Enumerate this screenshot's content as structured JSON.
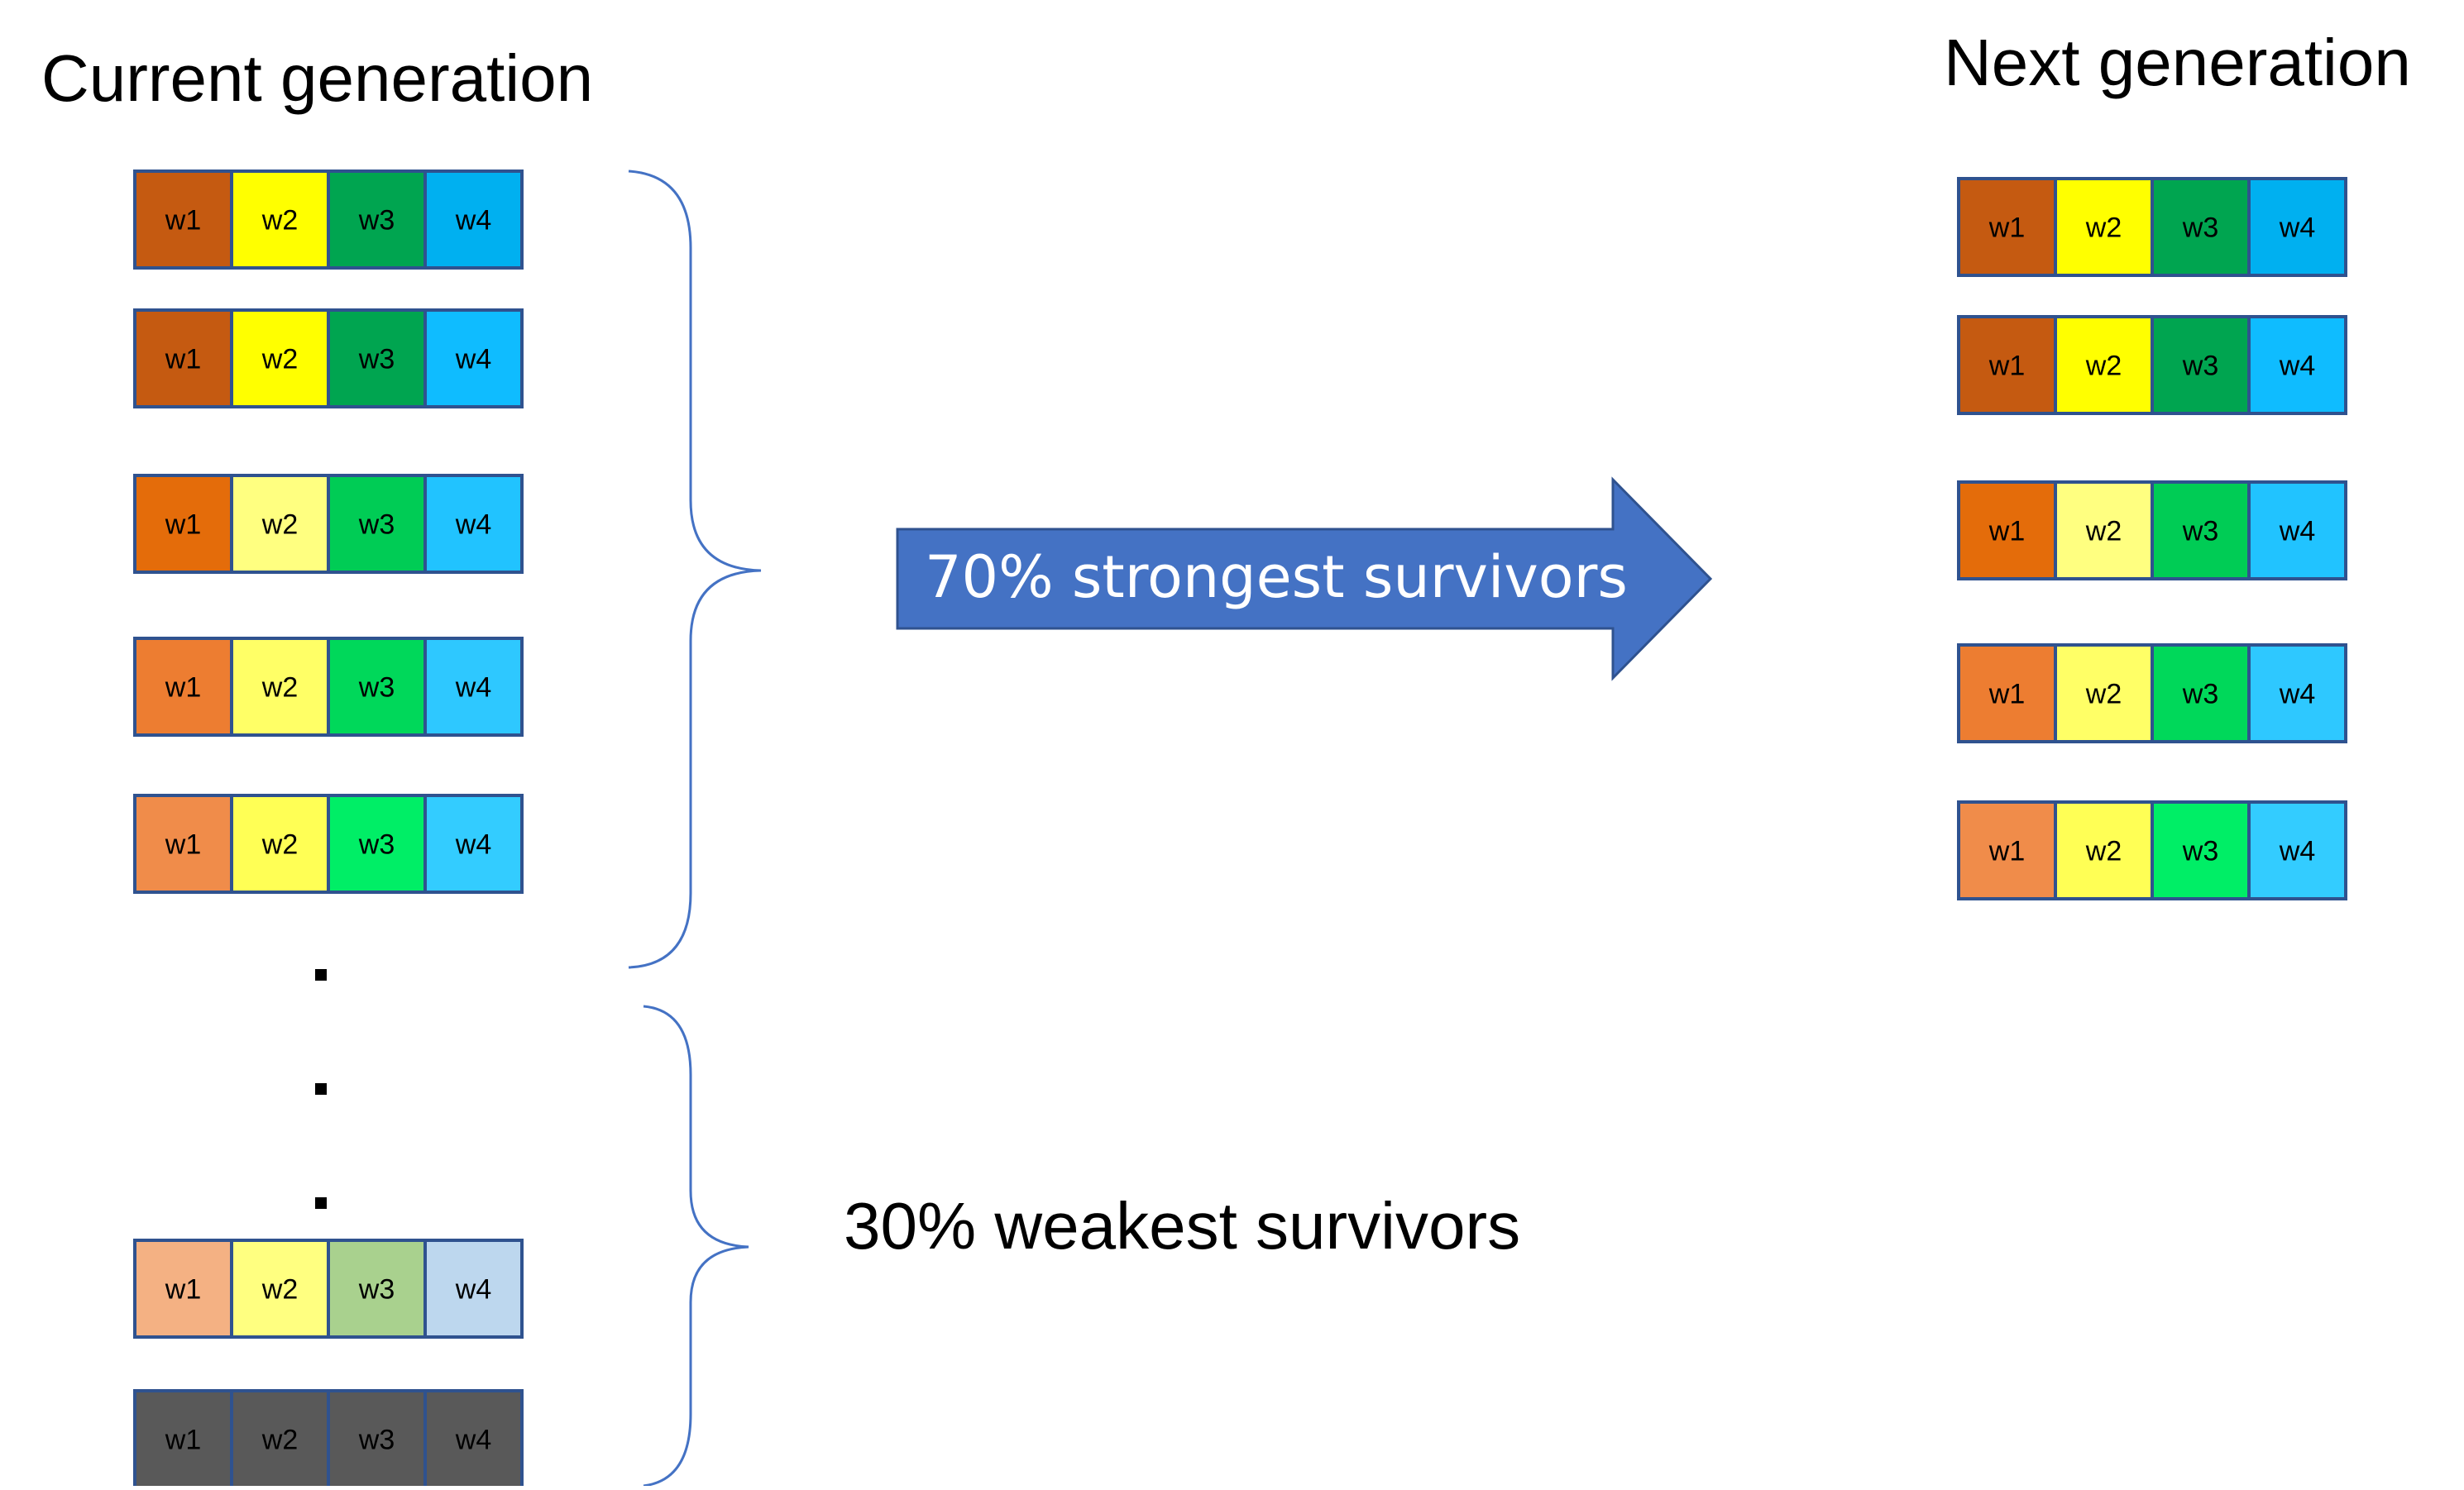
{
  "current_generation": {
    "title": "Current generation",
    "chromosomes": [
      {
        "genes": [
          {
            "label": "w1",
            "color": "#c55a11"
          },
          {
            "label": "w2",
            "color": "#ffff00"
          },
          {
            "label": "w3",
            "color": "#00a550"
          },
          {
            "label": "w4",
            "color": "#00b0f0"
          }
        ]
      },
      {
        "genes": [
          {
            "label": "w1",
            "color": "#c55a11"
          },
          {
            "label": "w2",
            "color": "#ffff00"
          },
          {
            "label": "w3",
            "color": "#00a550"
          },
          {
            "label": "w4",
            "color": "#0fbcff"
          }
        ]
      },
      {
        "genes": [
          {
            "label": "w1",
            "color": "#e46c0a"
          },
          {
            "label": "w2",
            "color": "#ffff80"
          },
          {
            "label": "w3",
            "color": "#00cc55"
          },
          {
            "label": "w4",
            "color": "#21c3ff"
          }
        ]
      },
      {
        "genes": [
          {
            "label": "w1",
            "color": "#ed7d31"
          },
          {
            "label": "w2",
            "color": "#ffff66"
          },
          {
            "label": "w3",
            "color": "#00d85a"
          },
          {
            "label": "w4",
            "color": "#2ec8ff"
          }
        ]
      },
      {
        "genes": [
          {
            "label": "w1",
            "color": "#f08c4a"
          },
          {
            "label": "w2",
            "color": "#ffff55"
          },
          {
            "label": "w3",
            "color": "#00ee66"
          },
          {
            "label": "w4",
            "color": "#33ccff"
          }
        ]
      },
      {
        "genes": [
          {
            "label": "w1",
            "color": "#f4b183"
          },
          {
            "label": "w2",
            "color": "#ffff80"
          },
          {
            "label": "w3",
            "color": "#a9d18e"
          },
          {
            "label": "w4",
            "color": "#bdd7ee"
          }
        ]
      },
      {
        "genes": [
          {
            "label": "w1",
            "color": "#595959"
          },
          {
            "label": "w2",
            "color": "#595959"
          },
          {
            "label": "w3",
            "color": "#595959"
          },
          {
            "label": "w4",
            "color": "#595959"
          }
        ]
      }
    ],
    "ellipsis": ".",
    "ellipsis_count": 3
  },
  "next_generation": {
    "title": "Next generation",
    "chromosomes": [
      {
        "genes": [
          {
            "label": "w1",
            "color": "#c55a11"
          },
          {
            "label": "w2",
            "color": "#ffff00"
          },
          {
            "label": "w3",
            "color": "#00a550"
          },
          {
            "label": "w4",
            "color": "#00b0f0"
          }
        ]
      },
      {
        "genes": [
          {
            "label": "w1",
            "color": "#c55a11"
          },
          {
            "label": "w2",
            "color": "#ffff00"
          },
          {
            "label": "w3",
            "color": "#00a550"
          },
          {
            "label": "w4",
            "color": "#0fbcff"
          }
        ]
      },
      {
        "genes": [
          {
            "label": "w1",
            "color": "#e46c0a"
          },
          {
            "label": "w2",
            "color": "#ffff80"
          },
          {
            "label": "w3",
            "color": "#00cc55"
          },
          {
            "label": "w4",
            "color": "#21c3ff"
          }
        ]
      },
      {
        "genes": [
          {
            "label": "w1",
            "color": "#ed7d31"
          },
          {
            "label": "w2",
            "color": "#ffff66"
          },
          {
            "label": "w3",
            "color": "#00d85a"
          },
          {
            "label": "w4",
            "color": "#2ec8ff"
          }
        ]
      },
      {
        "genes": [
          {
            "label": "w1",
            "color": "#f08c4a"
          },
          {
            "label": "w2",
            "color": "#ffff55"
          },
          {
            "label": "w3",
            "color": "#00ee66"
          },
          {
            "label": "w4",
            "color": "#33ccff"
          }
        ]
      }
    ]
  },
  "strongest_arrow": {
    "label": "70% strongest survivors",
    "color": "#4472c4"
  },
  "weakest_label": "30% weakest survivors",
  "colors": {
    "cell_border": "#2f528f",
    "brace": "#4472c4",
    "text": "#000000",
    "arrow_text": "#ffffff"
  }
}
